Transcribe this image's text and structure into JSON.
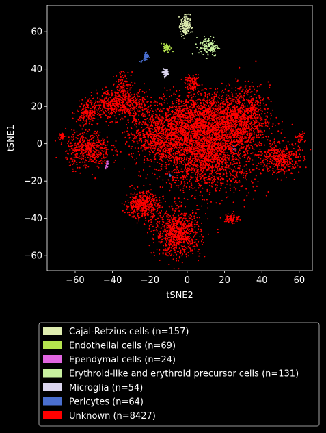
{
  "chart_data": {
    "type": "scatter",
    "xlabel": "tSNE2",
    "ylabel": "tSNE1",
    "xlim": [
      -75,
      67
    ],
    "ylim": [
      -68,
      74
    ],
    "xticks": [
      -60,
      -40,
      -20,
      0,
      20,
      40,
      60
    ],
    "yticks": [
      -60,
      -40,
      -20,
      0,
      20,
      40,
      60
    ],
    "grid": false,
    "legend_position": "below",
    "series": [
      {
        "name": "Cajal-Retzius cells (n=157)",
        "n": 157,
        "color": "#dfedb0",
        "clusters": [
          {
            "cx": -1,
            "cy": 63,
            "sx": 1.3,
            "sy": 3.0,
            "n": 157
          }
        ]
      },
      {
        "name": "Endothelial cells (n=69)",
        "n": 69,
        "color": "#b5e44e",
        "clusters": [
          {
            "cx": -10.5,
            "cy": 51.5,
            "sx": 1.0,
            "sy": 1.0,
            "n": 69
          }
        ]
      },
      {
        "name": "Ependymal cells (n=24)",
        "n": 24,
        "color": "#e065e0",
        "clusters": [
          {
            "cx": -43,
            "cy": -11,
            "sx": 0.4,
            "sy": 1.0,
            "n": 24
          }
        ]
      },
      {
        "name": "Erythroid-like and erythroid precursor cells (n=131)",
        "n": 131,
        "color": "#c8f0a0",
        "clusters": [
          {
            "cx": 11.5,
            "cy": 52,
            "sx": 2.6,
            "sy": 2.6,
            "n": 131
          }
        ]
      },
      {
        "name": "Microglia (n=54)",
        "n": 54,
        "color": "#dcd6f0",
        "clusters": [
          {
            "cx": -11.5,
            "cy": 38,
            "sx": 0.8,
            "sy": 1.0,
            "n": 54
          }
        ]
      },
      {
        "name": "Pericytes (n=64)",
        "n": 64,
        "color": "#4a6fd0",
        "clusters": [
          {
            "cx": -22,
            "cy": 47,
            "sx": 0.7,
            "sy": 1.1,
            "n": 46
          },
          {
            "cx": -25,
            "cy": 44,
            "sx": 0.4,
            "sy": 0.6,
            "n": 6
          },
          {
            "cx": -9,
            "cy": -17,
            "sx": 0.3,
            "sy": 0.4,
            "n": 6
          },
          {
            "cx": 25,
            "cy": -3,
            "sx": 0.5,
            "sy": 0.6,
            "n": 6
          }
        ]
      },
      {
        "name": "Unknown (n=8427)",
        "n": 8427,
        "color": "#ff0000",
        "clusters": [
          {
            "cx": 10,
            "cy": -3,
            "sx": 14,
            "sy": 11,
            "n": 2600
          },
          {
            "cx": 28,
            "cy": 14,
            "sx": 8,
            "sy": 8,
            "n": 900
          },
          {
            "cx": -15,
            "cy": 4,
            "sx": 8,
            "sy": 6,
            "n": 700
          },
          {
            "cx": -53,
            "cy": -3,
            "sx": 6,
            "sy": 5,
            "n": 480
          },
          {
            "cx": -53,
            "cy": 17,
            "sx": 3,
            "sy": 3,
            "n": 170
          },
          {
            "cx": -40,
            "cy": 21,
            "sx": 5,
            "sy": 4,
            "n": 340
          },
          {
            "cx": -28,
            "cy": 20,
            "sx": 4,
            "sy": 4,
            "n": 180
          },
          {
            "cx": -34,
            "cy": 31,
            "sx": 2.5,
            "sy": 4,
            "n": 120
          },
          {
            "cx": -24,
            "cy": -33,
            "sx": 4.5,
            "sy": 3.5,
            "n": 470
          },
          {
            "cx": -5,
            "cy": -48,
            "sx": 6,
            "sy": 6,
            "n": 820
          },
          {
            "cx": 24,
            "cy": -40,
            "sx": 2,
            "sy": 1.4,
            "n": 80
          },
          {
            "cx": 3,
            "cy": 32,
            "sx": 2,
            "sy": 2,
            "n": 120
          },
          {
            "cx": 35,
            "cy": 19,
            "sx": 1.2,
            "sy": 1.2,
            "n": 40
          },
          {
            "cx": -67,
            "cy": 4,
            "sx": 0.6,
            "sy": 1,
            "n": 30
          },
          {
            "cx": 60,
            "cy": 3,
            "sx": 1.5,
            "sy": 1.5,
            "n": 40
          },
          {
            "cx": 50,
            "cy": -8,
            "sx": 5,
            "sy": 4,
            "n": 380
          },
          {
            "cx": 5,
            "cy": 15,
            "sx": 12,
            "sy": 6,
            "n": 957
          }
        ]
      }
    ]
  }
}
